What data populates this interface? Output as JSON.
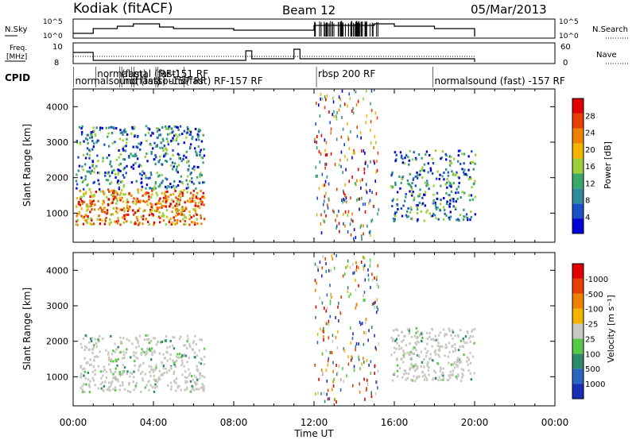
{
  "header": {
    "station": "Kodiak (fitACF)",
    "beam": "Beam 12",
    "date": "05/Mar/2013"
  },
  "nsky_panel": {
    "left_label": "N.Sky",
    "left_ticks": [
      "10^5",
      "10^0"
    ],
    "right_ticks": [
      "10^5",
      "10^0"
    ],
    "right_label": "N.Search"
  },
  "freq_panel": {
    "left_label_line1": "Freq.",
    "left_label_line2": "[MHz]",
    "left_ticks": [
      "10",
      "8"
    ],
    "right_ticks": [
      "60",
      "0"
    ],
    "right_label": "Nave"
  },
  "cpid": {
    "label": "CPID",
    "segments": [
      {
        "text": "normalsound (fast) -157 RF",
        "row": 0,
        "start_hr": 0.1
      },
      {
        "text": "normal",
        "row": 1,
        "start_hr": 1.2
      },
      {
        "text": "(fast)",
        "row": 1,
        "start_hr": 2.4
      },
      {
        "text": "nor",
        "row": 0,
        "start_hr": 2.5
      },
      {
        "text": "mal (fast)",
        "row": 1,
        "start_hr": 3.0
      },
      {
        "text": "(fast)",
        "row": 0,
        "start_hr": 3.1
      },
      {
        "text": "RF-151 RF",
        "row": 1,
        "start_hr": 4.3
      },
      {
        "text": "sound",
        "row": 0,
        "start_hr": 4.2
      },
      {
        "text": "(fast) RF-157 RF",
        "row": 0,
        "start_hr": 5.6
      },
      {
        "text": "rbsp 200 RF",
        "row": 1,
        "start_hr": 12.2
      },
      {
        "text": "normalsound (fast) -157 RF",
        "row": 0,
        "start_hr": 18.0
      }
    ]
  },
  "chart_data": [
    {
      "type": "heatmap",
      "title": "Power",
      "ylabel": "Slant Range [km]",
      "ylim": [
        180,
        4500
      ],
      "yticks": [
        "1000",
        "2000",
        "3000",
        "4000"
      ],
      "xlim_hr": [
        0,
        24
      ],
      "colorbar": {
        "label": "Power [dB]",
        "ticks": [
          "4",
          "8",
          "12",
          "16",
          "20",
          "24",
          "28"
        ],
        "colors": [
          "#0000d8",
          "#1a4fc8",
          "#2f8a9a",
          "#3aa86b",
          "#9bd03a",
          "#f2b400",
          "#f08000",
          "#e84000",
          "#e00000"
        ]
      },
      "regions": [
        {
          "t0": 0.1,
          "t1": 6.5,
          "r0": 700,
          "r1": 1700,
          "level": "high"
        },
        {
          "t0": 0.1,
          "t1": 6.5,
          "r0": 1700,
          "r1": 3500,
          "level": "mid"
        },
        {
          "t0": 12.0,
          "t1": 15.2,
          "r0": 300,
          "r1": 4500,
          "level": "mixed"
        },
        {
          "t0": 15.8,
          "t1": 20.0,
          "r0": 800,
          "r1": 2800,
          "level": "mid"
        }
      ]
    },
    {
      "type": "heatmap",
      "title": "Velocity",
      "ylabel": "Slant Range [km]",
      "xlabel": "Time UT",
      "ylim": [
        180,
        4500
      ],
      "yticks": [
        "1000",
        "2000",
        "3000",
        "4000"
      ],
      "xlim_hr": [
        0,
        24
      ],
      "xticks": [
        "00:00",
        "04:00",
        "08:00",
        "12:00",
        "16:00",
        "20:00",
        "00:00"
      ],
      "colorbar": {
        "label": "Velocity [m s⁻¹]",
        "ticks": [
          "1000",
          "500",
          "100",
          "25",
          "-25",
          "-100",
          "-500",
          "-1000"
        ],
        "colors": [
          "#1a2fb8",
          "#2a66c0",
          "#2f8a6a",
          "#58c848",
          "#c8c8c0",
          "#f2b400",
          "#f08000",
          "#e84000",
          "#e00000"
        ]
      },
      "regions": [
        {
          "t0": 0.3,
          "t1": 6.5,
          "r0": 600,
          "r1": 2200,
          "level": "low"
        },
        {
          "t0": 12.0,
          "t1": 15.2,
          "r0": 300,
          "r1": 4500,
          "level": "mixed"
        },
        {
          "t0": 15.8,
          "t1": 20.0,
          "r0": 900,
          "r1": 2400,
          "level": "low"
        }
      ]
    }
  ]
}
